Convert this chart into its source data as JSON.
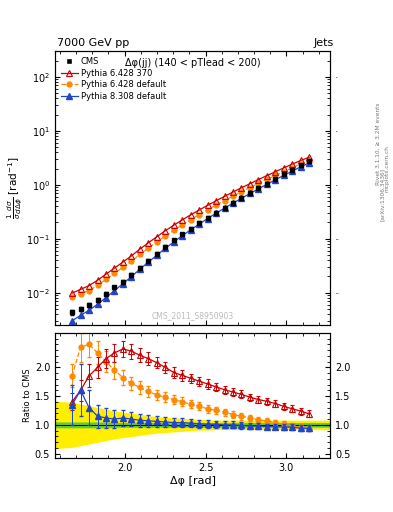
{
  "title_top": "7000 GeV pp",
  "title_right": "Jets",
  "subtitle": "Δφ(jj) (140 < pTlead < 200)",
  "watermark": "CMS_2011_S8950903",
  "right_label1": "Rivet 3.1.10, ≥ 3.2M events",
  "right_label2": "[arXiv:1306.3436]",
  "right_label3": "mcplots.cern.ch",
  "xlabel": "Δφ [rad]",
  "ylabel_main": "$\\frac{1}{\\sigma}\\frac{d\\sigma}{d\\Delta\\phi}$ [rad$^{-1}$]",
  "ylabel_ratio": "Ratio to CMS",
  "xlim": [
    1.57,
    3.27
  ],
  "ylim_main": [
    0.0025,
    300.0
  ],
  "ylim_ratio": [
    0.42,
    2.6
  ],
  "ratio_yticks": [
    0.5,
    1.0,
    1.5,
    2.0
  ],
  "cms_x": [
    1.675,
    1.728,
    1.78,
    1.833,
    1.885,
    1.937,
    1.99,
    2.042,
    2.094,
    2.147,
    2.199,
    2.251,
    2.304,
    2.356,
    2.408,
    2.461,
    2.513,
    2.565,
    2.618,
    2.67,
    2.722,
    2.775,
    2.827,
    2.879,
    2.932,
    2.984,
    3.036,
    3.089,
    3.141
  ],
  "cms_y": [
    0.0043,
    0.005,
    0.0059,
    0.0073,
    0.0095,
    0.0125,
    0.016,
    0.021,
    0.029,
    0.039,
    0.0525,
    0.07,
    0.093,
    0.12,
    0.153,
    0.194,
    0.243,
    0.305,
    0.378,
    0.468,
    0.575,
    0.71,
    0.868,
    1.05,
    1.28,
    1.56,
    1.89,
    2.28,
    2.73
  ],
  "cms_yerr": [
    0.0004,
    0.00045,
    0.0005,
    0.0006,
    0.0008,
    0.001,
    0.0013,
    0.0017,
    0.0024,
    0.0032,
    0.0043,
    0.0057,
    0.0076,
    0.0098,
    0.012,
    0.016,
    0.02,
    0.025,
    0.031,
    0.038,
    0.047,
    0.058,
    0.071,
    0.086,
    0.105,
    0.128,
    0.155,
    0.187,
    0.224
  ],
  "py6_370_x": [
    1.675,
    1.728,
    1.78,
    1.833,
    1.885,
    1.937,
    1.99,
    2.042,
    2.094,
    2.147,
    2.199,
    2.251,
    2.304,
    2.356,
    2.408,
    2.461,
    2.513,
    2.565,
    2.618,
    2.67,
    2.722,
    2.775,
    2.827,
    2.879,
    2.932,
    2.984,
    3.036,
    3.089,
    3.141
  ],
  "py6_370_y": [
    0.0098,
    0.0115,
    0.0135,
    0.017,
    0.022,
    0.0285,
    0.037,
    0.048,
    0.064,
    0.084,
    0.109,
    0.14,
    0.178,
    0.223,
    0.277,
    0.341,
    0.415,
    0.505,
    0.61,
    0.735,
    0.882,
    1.05,
    1.25,
    1.48,
    1.75,
    2.06,
    2.42,
    2.83,
    3.25
  ],
  "py6_def_x": [
    1.675,
    1.728,
    1.78,
    1.833,
    1.885,
    1.937,
    1.99,
    2.042,
    2.094,
    2.147,
    2.199,
    2.251,
    2.304,
    2.356,
    2.408,
    2.461,
    2.513,
    2.565,
    2.618,
    2.67,
    2.722,
    2.775,
    2.827,
    2.879,
    2.932,
    2.984,
    3.036,
    3.089,
    3.141
  ],
  "py6_def_y": [
    0.0082,
    0.0096,
    0.0109,
    0.0137,
    0.0176,
    0.0228,
    0.0295,
    0.0382,
    0.051,
    0.067,
    0.087,
    0.112,
    0.143,
    0.181,
    0.226,
    0.28,
    0.344,
    0.42,
    0.51,
    0.616,
    0.742,
    0.887,
    1.06,
    1.26,
    1.49,
    1.76,
    2.07,
    2.43,
    2.82
  ],
  "py8_def_x": [
    1.675,
    1.728,
    1.78,
    1.833,
    1.885,
    1.937,
    1.99,
    2.042,
    2.094,
    2.147,
    2.199,
    2.251,
    2.304,
    2.356,
    2.408,
    2.461,
    2.513,
    2.565,
    2.618,
    2.67,
    2.722,
    2.775,
    2.827,
    2.879,
    2.932,
    2.984,
    3.036,
    3.089,
    3.141
  ],
  "py8_def_y": [
    0.003,
    0.0038,
    0.0047,
    0.0061,
    0.0081,
    0.0109,
    0.0147,
    0.0198,
    0.0272,
    0.0368,
    0.0496,
    0.066,
    0.0873,
    0.114,
    0.146,
    0.187,
    0.237,
    0.297,
    0.37,
    0.457,
    0.562,
    0.69,
    0.841,
    1.02,
    1.24,
    1.5,
    1.8,
    2.15,
    2.56
  ],
  "py6_370_rat_x": [
    1.675,
    1.728,
    1.78,
    1.833,
    1.885,
    1.937,
    1.99,
    2.042,
    2.094,
    2.147,
    2.199,
    2.251,
    2.304,
    2.356,
    2.408,
    2.461,
    2.513,
    2.565,
    2.618,
    2.67,
    2.722,
    2.775,
    2.827,
    2.879,
    2.932,
    2.984,
    3.036,
    3.089,
    3.141
  ],
  "py6_370_rat": [
    1.4,
    1.6,
    1.85,
    2.0,
    2.15,
    2.25,
    2.32,
    2.28,
    2.21,
    2.15,
    2.08,
    2.0,
    1.91,
    1.86,
    1.81,
    1.76,
    1.71,
    1.66,
    1.61,
    1.57,
    1.53,
    1.48,
    1.44,
    1.41,
    1.37,
    1.32,
    1.28,
    1.24,
    1.19
  ],
  "py6_370_rat_err": [
    0.15,
    0.18,
    0.2,
    0.18,
    0.16,
    0.15,
    0.14,
    0.13,
    0.12,
    0.11,
    0.1,
    0.1,
    0.09,
    0.09,
    0.08,
    0.08,
    0.08,
    0.07,
    0.07,
    0.07,
    0.07,
    0.06,
    0.06,
    0.06,
    0.06,
    0.06,
    0.06,
    0.06,
    0.06
  ],
  "py6_def_rat_x": [
    1.675,
    1.728,
    1.78,
    1.833,
    1.885,
    1.937,
    1.99,
    2.042,
    2.094,
    2.147,
    2.199,
    2.251,
    2.304,
    2.356,
    2.408,
    2.461,
    2.513,
    2.565,
    2.618,
    2.67,
    2.722,
    2.775,
    2.827,
    2.879,
    2.932,
    2.984,
    3.036,
    3.089,
    3.141
  ],
  "py6_def_rat": [
    1.85,
    2.35,
    2.4,
    2.25,
    2.1,
    1.95,
    1.82,
    1.72,
    1.65,
    1.58,
    1.52,
    1.48,
    1.44,
    1.4,
    1.36,
    1.32,
    1.28,
    1.25,
    1.22,
    1.18,
    1.15,
    1.12,
    1.09,
    1.07,
    1.04,
    1.01,
    0.98,
    0.96,
    0.94
  ],
  "py6_def_rat_err": [
    0.2,
    0.25,
    0.22,
    0.2,
    0.18,
    0.15,
    0.13,
    0.12,
    0.11,
    0.1,
    0.09,
    0.09,
    0.08,
    0.08,
    0.07,
    0.07,
    0.07,
    0.06,
    0.06,
    0.06,
    0.06,
    0.06,
    0.05,
    0.05,
    0.05,
    0.05,
    0.05,
    0.05,
    0.05
  ],
  "py8_def_rat_x": [
    1.675,
    1.728,
    1.78,
    1.833,
    1.885,
    1.937,
    1.99,
    2.042,
    2.094,
    2.147,
    2.199,
    2.251,
    2.304,
    2.356,
    2.408,
    2.461,
    2.513,
    2.565,
    2.618,
    2.67,
    2.722,
    2.775,
    2.827,
    2.879,
    2.932,
    2.984,
    3.036,
    3.089,
    3.141
  ],
  "py8_def_rat": [
    1.35,
    1.6,
    1.3,
    1.15,
    1.12,
    1.1,
    1.12,
    1.1,
    1.08,
    1.07,
    1.06,
    1.05,
    1.04,
    1.04,
    1.03,
    1.02,
    1.01,
    1.01,
    1.0,
    1.0,
    0.99,
    0.98,
    0.98,
    0.97,
    0.97,
    0.96,
    0.96,
    0.94,
    0.94
  ],
  "py8_def_rat_err": [
    0.35,
    0.45,
    0.3,
    0.2,
    0.18,
    0.16,
    0.14,
    0.12,
    0.11,
    0.1,
    0.09,
    0.09,
    0.08,
    0.08,
    0.07,
    0.07,
    0.07,
    0.06,
    0.06,
    0.06,
    0.06,
    0.06,
    0.05,
    0.05,
    0.05,
    0.05,
    0.05,
    0.05,
    0.05
  ],
  "green_band_x": [
    1.57,
    1.675,
    1.728,
    1.78,
    1.833,
    1.885,
    1.937,
    1.99,
    2.042,
    2.094,
    2.147,
    2.199,
    2.251,
    2.304,
    2.356,
    2.408,
    2.461,
    2.513,
    2.565,
    2.618,
    2.67,
    2.722,
    2.775,
    2.827,
    2.879,
    2.932,
    2.984,
    3.036,
    3.089,
    3.141,
    3.27
  ],
  "green_band_low": [
    0.96,
    0.96,
    0.96,
    0.96,
    0.96,
    0.96,
    0.97,
    0.97,
    0.97,
    0.97,
    0.97,
    0.97,
    0.97,
    0.97,
    0.97,
    0.97,
    0.97,
    0.97,
    0.97,
    0.97,
    0.97,
    0.97,
    0.97,
    0.97,
    0.97,
    0.97,
    0.97,
    0.97,
    0.97,
    0.97,
    0.97
  ],
  "green_band_high": [
    1.04,
    1.04,
    1.04,
    1.04,
    1.04,
    1.04,
    1.03,
    1.03,
    1.03,
    1.03,
    1.03,
    1.03,
    1.03,
    1.03,
    1.03,
    1.03,
    1.03,
    1.03,
    1.03,
    1.03,
    1.03,
    1.03,
    1.03,
    1.03,
    1.03,
    1.03,
    1.03,
    1.03,
    1.03,
    1.03,
    1.03
  ],
  "yellow_band_x": [
    1.57,
    1.675,
    1.728,
    1.78,
    1.833,
    1.885,
    1.937,
    1.99,
    2.042,
    2.094,
    2.147,
    2.199,
    2.251,
    2.304,
    2.356,
    2.408,
    2.461,
    2.513,
    2.565,
    2.618,
    2.67,
    2.722,
    2.775,
    2.827,
    2.879,
    2.932,
    2.984,
    3.036,
    3.089,
    3.141,
    3.27
  ],
  "yellow_band_low": [
    0.6,
    0.62,
    0.65,
    0.68,
    0.71,
    0.74,
    0.77,
    0.79,
    0.81,
    0.83,
    0.85,
    0.87,
    0.88,
    0.89,
    0.9,
    0.91,
    0.92,
    0.92,
    0.93,
    0.93,
    0.93,
    0.93,
    0.93,
    0.93,
    0.93,
    0.93,
    0.93,
    0.93,
    0.93,
    0.93,
    0.93
  ],
  "yellow_band_high": [
    1.4,
    1.38,
    1.35,
    1.32,
    1.29,
    1.26,
    1.23,
    1.21,
    1.19,
    1.17,
    1.15,
    1.13,
    1.12,
    1.11,
    1.1,
    1.09,
    1.08,
    1.08,
    1.07,
    1.07,
    1.07,
    1.07,
    1.07,
    1.07,
    1.07,
    1.07,
    1.07,
    1.07,
    1.07,
    1.07,
    1.07
  ],
  "color_py6_370": "#cc0000",
  "color_py6_def": "#ff8800",
  "color_py8_def": "#2244cc",
  "color_cms": "black",
  "color_green": "#44cc44",
  "color_yellow": "#ffee00"
}
